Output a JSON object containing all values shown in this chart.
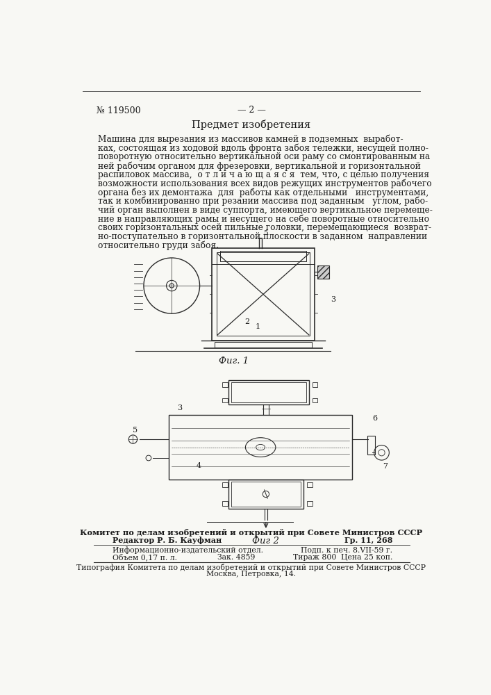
{
  "bg_color": "#f8f8f4",
  "text_color": "#1a1a1a",
  "line_color": "#2a2a2a",
  "patent_number": "№ 119500",
  "page_number": "— 2 —",
  "section_title": "Предмет изобретения",
  "body_lines": [
    "Машина для вырезания из массивов камней в подземных  выработ-",
    "ках, состоящая из ходовой вдоль фронта забоя тележки, несущей полно-",
    "поворотную относительно вертикальной оси раму со смонтированным на",
    "ней рабочим органом для фрезеровки, вертикальной и горизонтальной",
    "распиловок массива,  о т л и ч а ю щ а я с я  тем, что, с целью получения",
    "возможности использования всех видов режущих инструментов рабочего",
    "органа без их демонтажа  для  работы как отдельными   инструментами,",
    "так и комбинированно при резании массива под заданным   углом, рабо-",
    "чий орган выполнен в виде суппорта, имеющего вертикальное перемеще-",
    "ние в направляющих рамы и несущего на себе поворотные относительно",
    "своих горизонтальных осей пильные головки, перемещающиеся  возврат-",
    "но-поступательно в горизонтальной плоскости в заданном  направлении",
    "относительно груди забоя."
  ],
  "fig1_label": "Фиг. 1",
  "fig2_label": "Фиг 2",
  "footer_committee": "Комитет по делам изобретений и открытий при Совете Министров СССР",
  "footer_editor_left": "Редактор Р. Б. Кауфман",
  "footer_editor_right": "Гр. 11, 268",
  "footer_info_left": "Информационно-издательский отдел.",
  "footer_info_right": "Подп. к печ. 8.VII-59 г.",
  "footer_vol_left": "Объем 0,17 п. л.",
  "footer_vol_mid1": "Зак. 4859",
  "footer_vol_mid2": "Тираж 800",
  "footer_vol_right": "Цена 25 коп.",
  "footer_typo": "Типография Комитета по делам изобретений и открытий при Совете Министров СССР",
  "footer_address": "Москва, Петровка, 14."
}
